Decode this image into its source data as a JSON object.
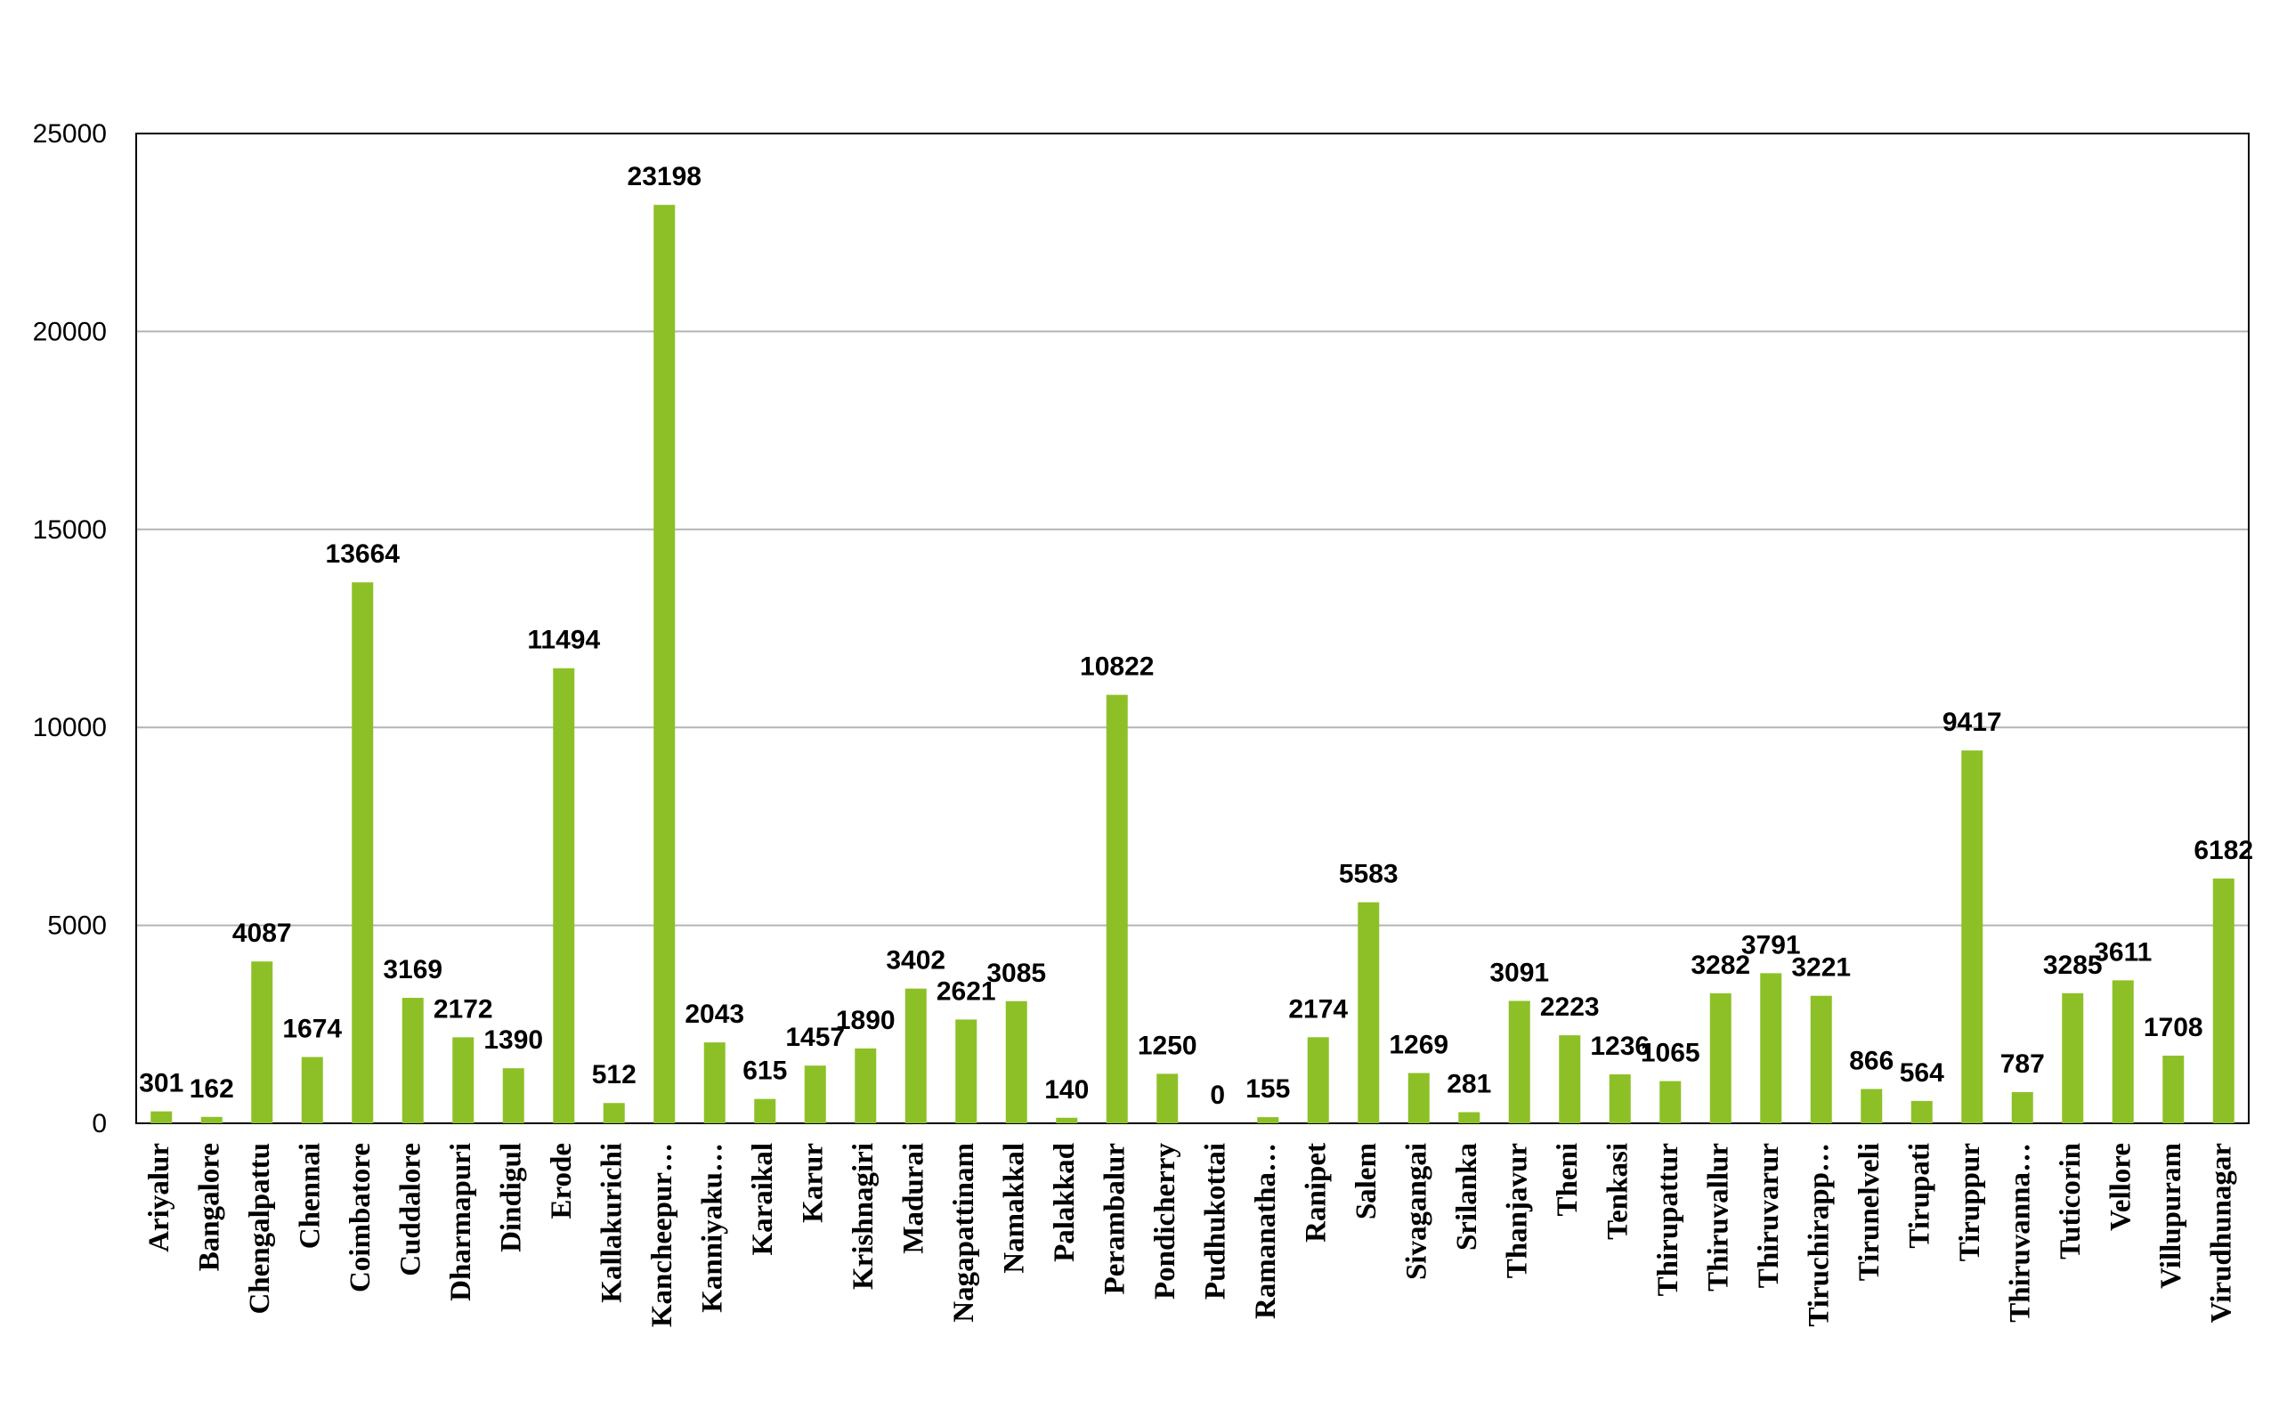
{
  "chart_data": {
    "type": "bar",
    "categories": [
      "Ariyalur",
      "Bangalore",
      "Chengalpattu",
      "Chennai",
      "Coimbatore",
      "Cuddalore",
      "Dharmapuri",
      "Dindigul",
      "Erode",
      "Kallakurichi",
      "Kancheepur…",
      "Kanniyaku…",
      "Karaikal",
      "Karur",
      "Krishnagiri",
      "Madurai",
      "Nagapattinam",
      "Namakkal",
      "Palakkad",
      "Perambalur",
      "Pondicherry",
      "Pudhukottai",
      "Ramanatha…",
      "Ranipet",
      "Salem",
      "Sivagangai",
      "Srilanka",
      "Thanjavur",
      "Theni",
      "Tenkasi",
      "Thirupattur",
      "Thiruvallur",
      "Thiruvarur",
      "Tiruchirapp…",
      "Tirunelveli",
      "Tirupati",
      "Tiruppur",
      "Thiruvanna…",
      "Tuticorin",
      "Vellore",
      "Villupuram",
      "Virudhunagar"
    ],
    "values": [
      301,
      162,
      4087,
      1674,
      13664,
      3169,
      2172,
      1390,
      11494,
      512,
      23198,
      2043,
      615,
      1457,
      1890,
      3402,
      2621,
      3085,
      140,
      10822,
      1250,
      0,
      155,
      2174,
      5583,
      1269,
      281,
      3091,
      2223,
      1236,
      1065,
      3282,
      3791,
      3221,
      866,
      564,
      9417,
      787,
      3285,
      3611,
      1708,
      6182
    ],
    "ylim": [
      0,
      25000
    ],
    "yticks": [
      0,
      5000,
      10000,
      15000,
      20000,
      25000
    ],
    "grid": true,
    "legend": "none",
    "bar_color": "#8dc027",
    "grid_color": "#b4b4b4"
  }
}
